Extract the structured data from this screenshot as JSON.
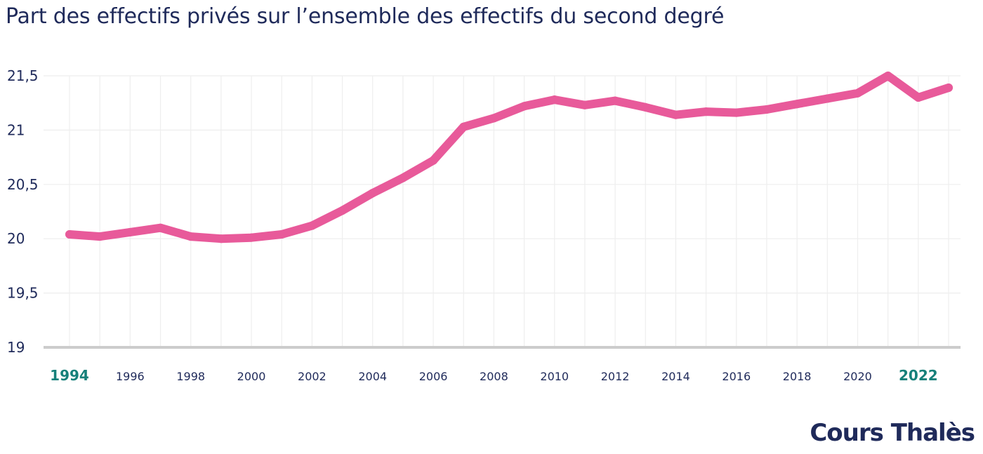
{
  "chart_data": {
    "type": "line",
    "title": "Part des effectifs privés sur l’ensemble des effectifs du second degré",
    "xlabel": "",
    "ylabel": "",
    "ylim": [
      19,
      21.5
    ],
    "yticks": [
      "19",
      "19,5",
      "20",
      "20,5",
      "21",
      "21,5"
    ],
    "ytick_values": [
      19,
      19.5,
      20,
      20.5,
      21,
      21.5
    ],
    "xticks": [
      "1994",
      "1996",
      "1998",
      "2000",
      "2002",
      "2004",
      "2006",
      "2008",
      "2010",
      "2012",
      "2014",
      "2016",
      "2018",
      "2020",
      "2022"
    ],
    "xtick_values": [
      1994,
      1996,
      1998,
      2000,
      2002,
      2004,
      2006,
      2008,
      2010,
      2012,
      2014,
      2016,
      2018,
      2020,
      2022
    ],
    "highlighted_xticks": [
      "1994",
      "2022"
    ],
    "grid": true,
    "legend": "none",
    "series": [
      {
        "x": [
          1994,
          1995,
          1996,
          1997,
          1998,
          1999,
          2000,
          2001,
          2002,
          2003,
          2004,
          2005,
          2006,
          2007,
          2008,
          2009,
          2010,
          2011,
          2012,
          2013,
          2014,
          2015,
          2016,
          2017,
          2018,
          2019,
          2020,
          2021,
          2022,
          2023
        ],
        "values": [
          20.04,
          20.02,
          20.06,
          20.1,
          20.02,
          20.0,
          20.01,
          20.04,
          20.12,
          20.26,
          20.42,
          20.56,
          20.72,
          21.03,
          21.11,
          21.22,
          21.28,
          21.23,
          21.27,
          21.21,
          21.14,
          21.17,
          21.16,
          21.19,
          21.24,
          21.29,
          21.34,
          21.5,
          21.3,
          21.39
        ],
        "color": "#e85a9a"
      }
    ]
  },
  "brand": {
    "logo_text": "Cours Thalès"
  },
  "colors": {
    "line": "#e85a9a",
    "title": "#1f2a5a",
    "highlight": "#16807a",
    "grid": "#eeeeee",
    "axis": "#cccccc"
  }
}
